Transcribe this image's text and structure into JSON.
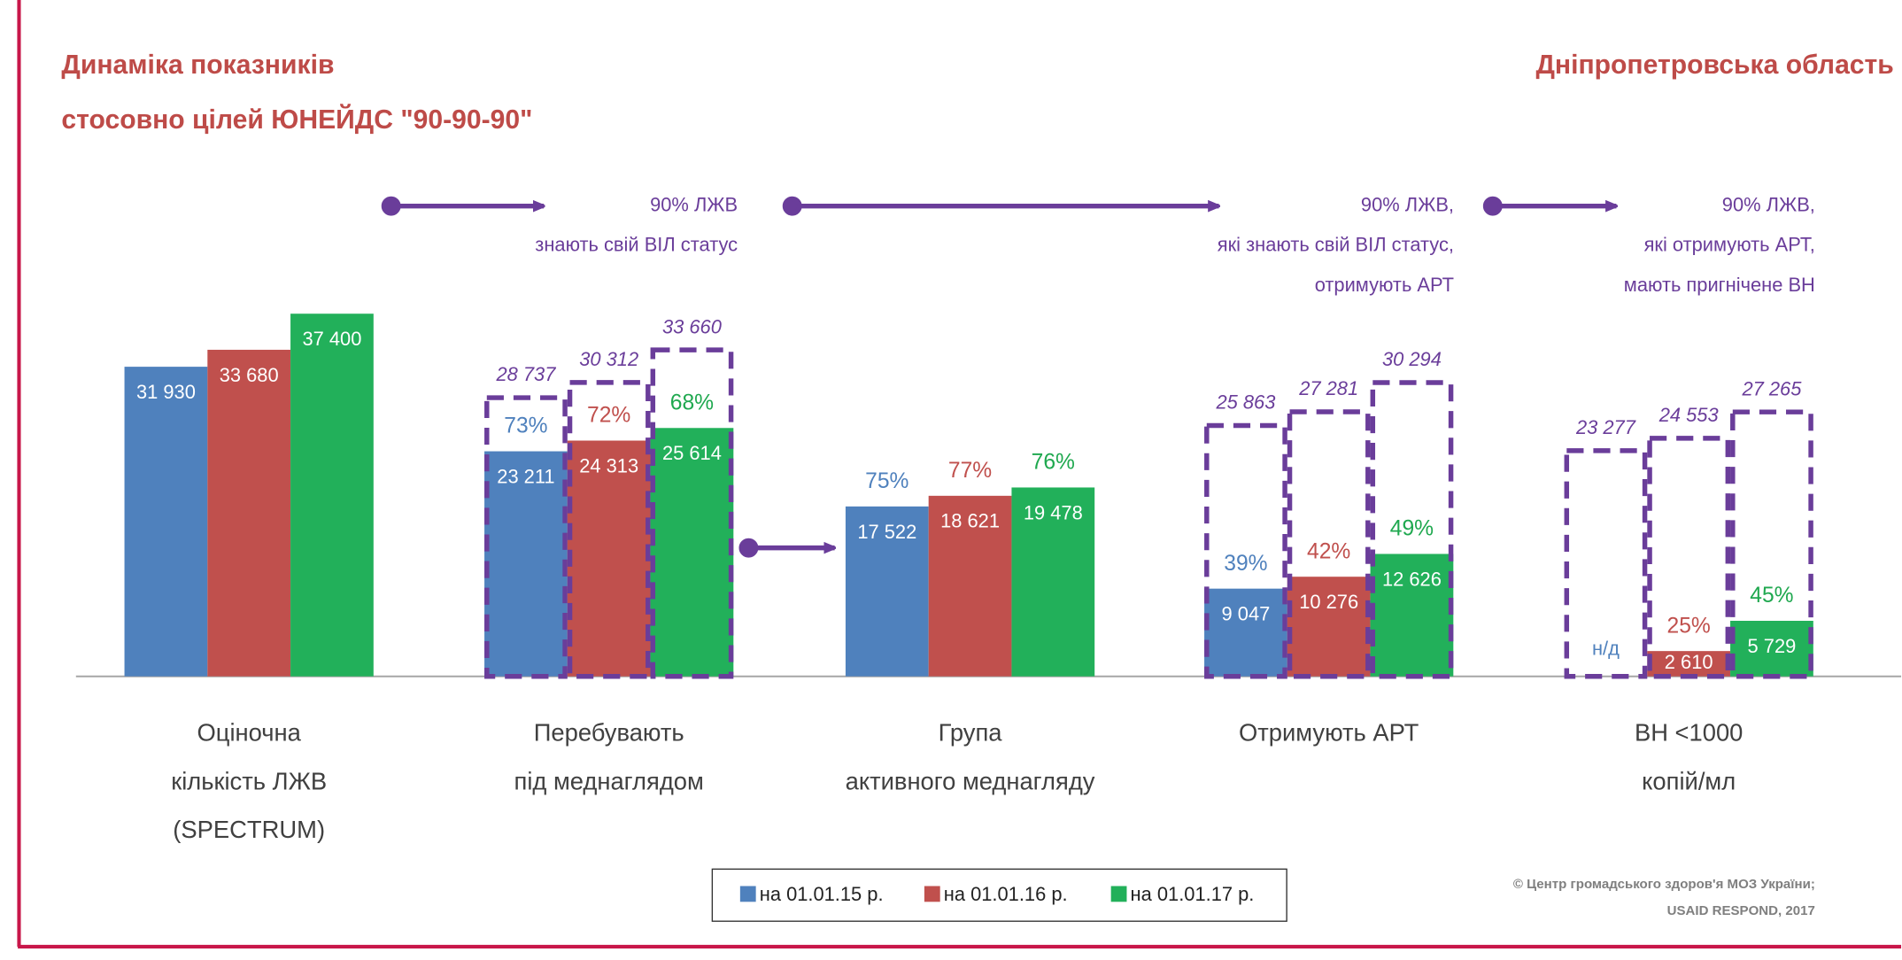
{
  "chart_data": {
    "type": "bar",
    "title": [
      "Динаміка показників",
      "стосовно цілей ЮНЕЙДС \"90-90-90\""
    ],
    "region": "Дніпропетровська область",
    "categories": [
      [
        "Оціночна",
        "кількість ЛЖВ",
        "(SPECTRUM)"
      ],
      [
        "Перебувають",
        "під меднаглядом"
      ],
      [
        "Група",
        "активного меднагляду"
      ],
      [
        "Отримують АРТ"
      ],
      [
        "ВН <1000",
        "копій/мл"
      ]
    ],
    "ylim": [
      0,
      40000
    ],
    "series": [
      {
        "name": "на 01.01.15 р.",
        "color": "#4f81bd",
        "text_color": "#4f81bd",
        "values": [
          31930,
          23211,
          17522,
          9047,
          null
        ],
        "value_labels": [
          "31 930",
          "23 211",
          "17 522",
          "9 047",
          "н/д"
        ],
        "shares": [
          null,
          73,
          75,
          39,
          null
        ],
        "share_labels": [
          null,
          "73%",
          "75%",
          "39%",
          null
        ],
        "targets": [
          null,
          28737,
          null,
          25863,
          23277
        ],
        "target_labels": [
          null,
          "28 737",
          null,
          "25 863",
          "23 277"
        ]
      },
      {
        "name": "на 01.01.16 р.",
        "color": "#c0504d",
        "text_color": "#c0504d",
        "values": [
          33680,
          24313,
          18621,
          10276,
          2610
        ],
        "value_labels": [
          "33 680",
          "24 313",
          "18 621",
          "10 276",
          "2 610"
        ],
        "shares": [
          null,
          72,
          77,
          42,
          25
        ],
        "share_labels": [
          null,
          "72%",
          "77%",
          "42%",
          "25%"
        ],
        "targets": [
          null,
          30312,
          null,
          27281,
          24553
        ],
        "target_labels": [
          null,
          "30 312",
          null,
          "27 281",
          "24 553"
        ]
      },
      {
        "name": "на 01.01.17 р.",
        "color": "#22b05a",
        "text_color": "#1fa84f",
        "values": [
          37400,
          25614,
          19478,
          12626,
          5729
        ],
        "value_labels": [
          "37 400",
          "25 614",
          "19 478",
          "12 626",
          "5 729"
        ],
        "shares": [
          null,
          68,
          76,
          49,
          45
        ],
        "share_labels": [
          null,
          "68%",
          "76%",
          "49%",
          "45%"
        ],
        "targets": [
          null,
          33660,
          null,
          30294,
          27265
        ],
        "target_labels": [
          null,
          "33 660",
          null,
          "30 294",
          "27 265"
        ]
      }
    ],
    "annotations": [
      [
        "90% ЛЖВ",
        "знають свій ВІЛ статус"
      ],
      [
        "90% ЛЖВ,",
        "які знають свій ВІЛ статус,",
        "отримують АРТ"
      ],
      [
        "90% ЛЖВ,",
        "які отримують АРТ,",
        "мають пригнічене ВН"
      ]
    ],
    "source": [
      "© Центр громадського здоров'я МОЗ України;",
      "USAID RESPOND, 2017"
    ]
  }
}
